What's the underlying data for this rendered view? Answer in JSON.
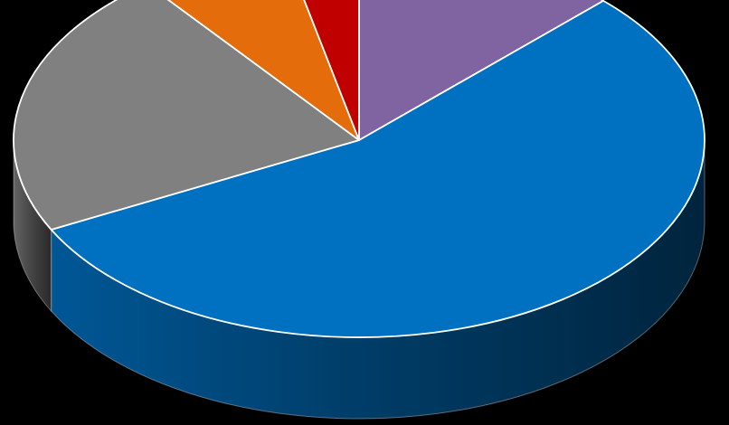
{
  "chart_data": {
    "type": "pie",
    "style": "3d",
    "background": "#000000",
    "slices": [
      {
        "value": 12.5,
        "color": "#8064A2"
      },
      {
        "value": 55.0,
        "color": "#0070C0"
      },
      {
        "value": 22.0,
        "color": "#808080"
      },
      {
        "value": 7.0,
        "color": "#E46C0A"
      },
      {
        "value": 3.5,
        "color": "#C00000"
      }
    ],
    "legend": "none",
    "title": ""
  }
}
